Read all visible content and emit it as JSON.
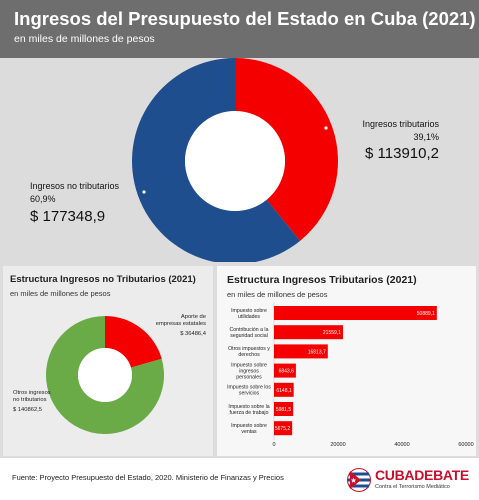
{
  "header": {
    "title": "Ingresos del Presupuesto del Estado en Cuba (2021)",
    "subtitle": "en miles de millones de pesos"
  },
  "colors": {
    "red": "#f40000",
    "blue": "#1f4e8e",
    "green": "#6aaa47",
    "brand_red": "#c8102e"
  },
  "chart_data": [
    {
      "type": "pie",
      "variant": "donut",
      "labels": [
        "Ingresos tributarios",
        "Ingresos no tributarios"
      ],
      "percent_labels": [
        "39,1%",
        "60,9%"
      ],
      "value_labels": [
        "$ 113910,2",
        "$ 177348,9"
      ],
      "values": [
        113910.2,
        177348.9
      ],
      "colors": [
        "#f40000",
        "#1f4e8e"
      ]
    },
    {
      "type": "pie",
      "variant": "donut",
      "title": "Estructura Ingresos no Tributarios (2021)",
      "subtitle": "en miles de millones de pesos",
      "labels": [
        "Aporte de empresas estatales",
        "Otros ingresos no tributarios"
      ],
      "value_labels": [
        "$ 36486,4",
        "$ 140862,5"
      ],
      "values": [
        36486.4,
        140862.5
      ],
      "colors": [
        "#f40000",
        "#6aaa47"
      ]
    },
    {
      "type": "bar",
      "orientation": "horizontal",
      "title": "Estructura Ingresos Tributarios (2021)",
      "subtitle": "en miles de millones de pesos",
      "categories": [
        "Impuesto sobre utilidades",
        "Contribución a la seguridad social",
        "Otros impuestos y derechos",
        "Impuesto sobre ingresos personales",
        "Impuesto sobre los servicios",
        "Impuesto sobre la fuerza de trabajo",
        "Impuesto sobre ventas"
      ],
      "values": [
        50889.1,
        21559.1,
        16813.7,
        6843.6,
        6148.1,
        5981.5,
        5675.2
      ],
      "value_labels": [
        "50889,1",
        "21559,1",
        "16813,7",
        "6843,6",
        "6148,1",
        "5981,5",
        "5675,2"
      ],
      "x_ticks": [
        0,
        20000,
        40000,
        60000
      ],
      "xlim": [
        0,
        60000
      ],
      "color": "#f40000"
    }
  ],
  "footer": {
    "source": "Fuente: Proyecto Presupuesto del Estado, 2020. Ministerio de Finanzas y Precios",
    "brand_a": "CUBA",
    "brand_b": "DEBATE",
    "brand_tagline": "Contra el Terrorismo Mediático"
  }
}
